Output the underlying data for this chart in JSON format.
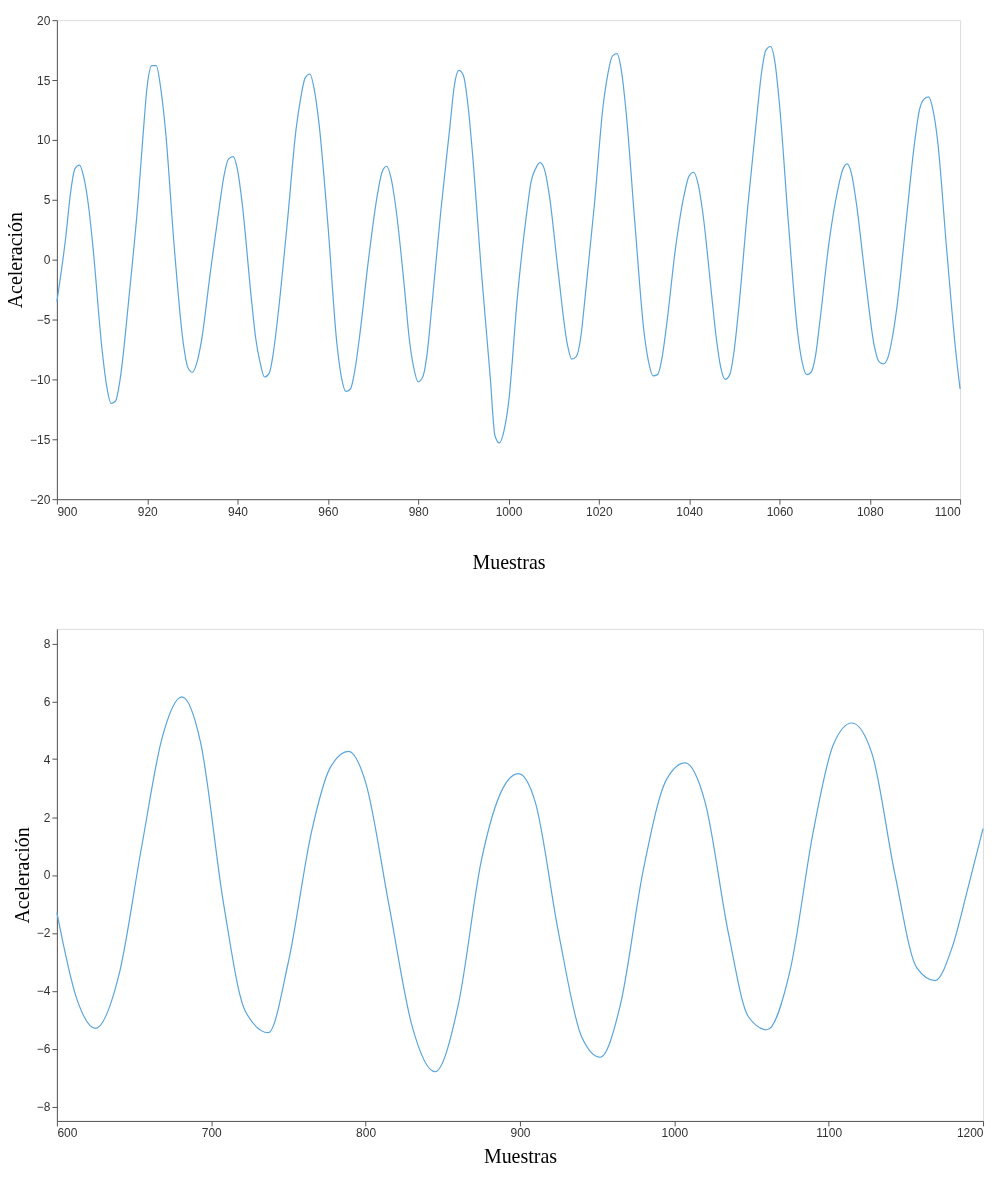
{
  "chart_data": [
    {
      "type": "line",
      "xlabel": "Muestras",
      "ylabel": "Aceleración",
      "color": "#5aa5dc",
      "xlim": [
        900,
        1100
      ],
      "ylim": [
        -20,
        20
      ],
      "xticks": [
        900,
        920,
        940,
        960,
        980,
        1000,
        1020,
        1040,
        1060,
        1080,
        1100
      ],
      "yticks": [
        -20,
        -15,
        -10,
        -5,
        0,
        5,
        10,
        15,
        20
      ],
      "x": [
        900,
        902,
        903,
        904,
        905,
        906,
        907,
        908,
        910,
        911,
        912,
        913,
        914,
        916,
        918,
        919,
        920,
        921,
        922,
        923,
        924,
        926,
        928,
        929,
        930,
        931,
        932,
        934,
        936,
        937,
        938,
        939,
        940,
        941,
        943,
        944,
        945,
        946,
        947,
        948,
        949,
        951,
        953,
        954,
        955,
        956,
        957,
        958,
        960,
        962,
        963,
        964,
        965,
        966,
        967,
        969,
        971,
        972,
        973,
        974,
        975,
        977,
        978,
        979,
        980,
        981,
        982,
        983,
        985,
        987,
        988,
        989,
        990,
        991,
        992,
        994,
        996,
        997,
        998,
        999,
        1000,
        1002,
        1004,
        1005,
        1006,
        1007,
        1008,
        1009,
        1011,
        1013,
        1014,
        1015,
        1016,
        1017,
        1019,
        1021,
        1022,
        1023,
        1024,
        1025,
        1026,
        1028,
        1030,
        1031,
        1032,
        1033,
        1034,
        1035,
        1037,
        1039,
        1040,
        1041,
        1042,
        1043,
        1045,
        1046,
        1047,
        1048,
        1049,
        1050,
        1051,
        1053,
        1055,
        1056,
        1057,
        1058,
        1059,
        1060,
        1062,
        1064,
        1065,
        1066,
        1067,
        1068,
        1069,
        1071,
        1073,
        1074,
        1075,
        1076,
        1077,
        1079,
        1081,
        1082,
        1083,
        1084,
        1085,
        1086,
        1088,
        1090,
        1091,
        1092,
        1093,
        1094,
        1095,
        1097,
        1099,
        1100
      ],
      "values": [
        -3.5,
        2,
        5.5,
        7.6,
        7.9,
        6.8,
        4.5,
        1,
        -7.5,
        -10.5,
        -12,
        -11.8,
        -10,
        -3,
        5,
        10,
        14.5,
        16.2,
        16.2,
        14.3,
        11,
        1,
        -7,
        -9,
        -9.4,
        -8.6,
        -6.8,
        -1,
        4.5,
        7,
        8.4,
        8.6,
        7.5,
        4.8,
        -3,
        -6.5,
        -8.6,
        -9.8,
        -9.5,
        -7.6,
        -4.5,
        3,
        11,
        13.5,
        15.2,
        15.5,
        14.2,
        11.5,
        3,
        -7,
        -9.8,
        -11,
        -10.8,
        -9.2,
        -6.5,
        0,
        5.5,
        7.3,
        7.8,
        6.8,
        4.5,
        -2.5,
        -6.5,
        -9,
        -10.2,
        -9.8,
        -7.8,
        -4,
        4,
        11,
        14.5,
        15.8,
        15.4,
        13,
        9,
        -1,
        -10,
        -14.7,
        -15.3,
        -14.3,
        -12,
        -3,
        3.8,
        6.5,
        7.6,
        8.1,
        7.5,
        5.5,
        -1,
        -7,
        -8.3,
        -8.1,
        -6.5,
        -3,
        4.5,
        13,
        15.5,
        17,
        17.2,
        15.8,
        12.5,
        3,
        -6,
        -8.5,
        -9.7,
        -9.6,
        -8.2,
        -5.5,
        1,
        5.6,
        7,
        7.3,
        6.3,
        4,
        -3,
        -6.5,
        -9,
        -10,
        -9.6,
        -7.5,
        -4,
        4.5,
        12,
        15.5,
        17.5,
        17.8,
        16.5,
        13,
        3,
        -6,
        -8.5,
        -9.6,
        -9.4,
        -8,
        -5,
        1.5,
        6,
        7.5,
        8,
        7.1,
        4.8,
        -1.5,
        -7.2,
        -8.5,
        -8.7,
        -8.2,
        -6.5,
        -4,
        3,
        10,
        12.5,
        13.4,
        13.6,
        12.5,
        10,
        1,
        -7.5,
        -10.8
      ]
    },
    {
      "type": "line",
      "xlabel": "Muestras",
      "ylabel": "Aceleración",
      "color": "#5aa5dc",
      "xlim": [
        600,
        1200
      ],
      "ylim": [
        -8.5,
        8.5
      ],
      "xticks": [
        600,
        700,
        800,
        900,
        1000,
        1100,
        1200
      ],
      "yticks": [
        -8,
        -6,
        -4,
        -2,
        0,
        2,
        4,
        6,
        8
      ],
      "x": [
        600,
        613,
        625,
        640,
        655,
        668,
        681,
        693,
        708,
        722,
        737,
        750,
        765,
        777,
        789,
        800,
        815,
        830,
        845,
        860,
        875,
        889,
        899,
        910,
        925,
        940,
        952,
        965,
        980,
        995,
        1007,
        1020,
        1035,
        1048,
        1060,
        1075,
        1090,
        1103,
        1115,
        1128,
        1143,
        1157,
        1169,
        1180,
        1190,
        1200
      ],
      "values": [
        -1.3,
        -4.3,
        -5.3,
        -3.5,
        1,
        4.7,
        6.15,
        4.6,
        -1,
        -4.7,
        -5.45,
        -3,
        1.5,
        3.7,
        4.27,
        3.2,
        -1,
        -5.2,
        -6.8,
        -4.5,
        0.5,
        3,
        3.5,
        2.5,
        -2,
        -5.6,
        -6.3,
        -4.5,
        0.2,
        3.3,
        3.87,
        2.5,
        -2,
        -4.9,
        -5.35,
        -3.3,
        1.5,
        4.5,
        5.25,
        4.2,
        0,
        -3.2,
        -3.65,
        -2.5,
        -0.5,
        1.6
      ]
    }
  ]
}
